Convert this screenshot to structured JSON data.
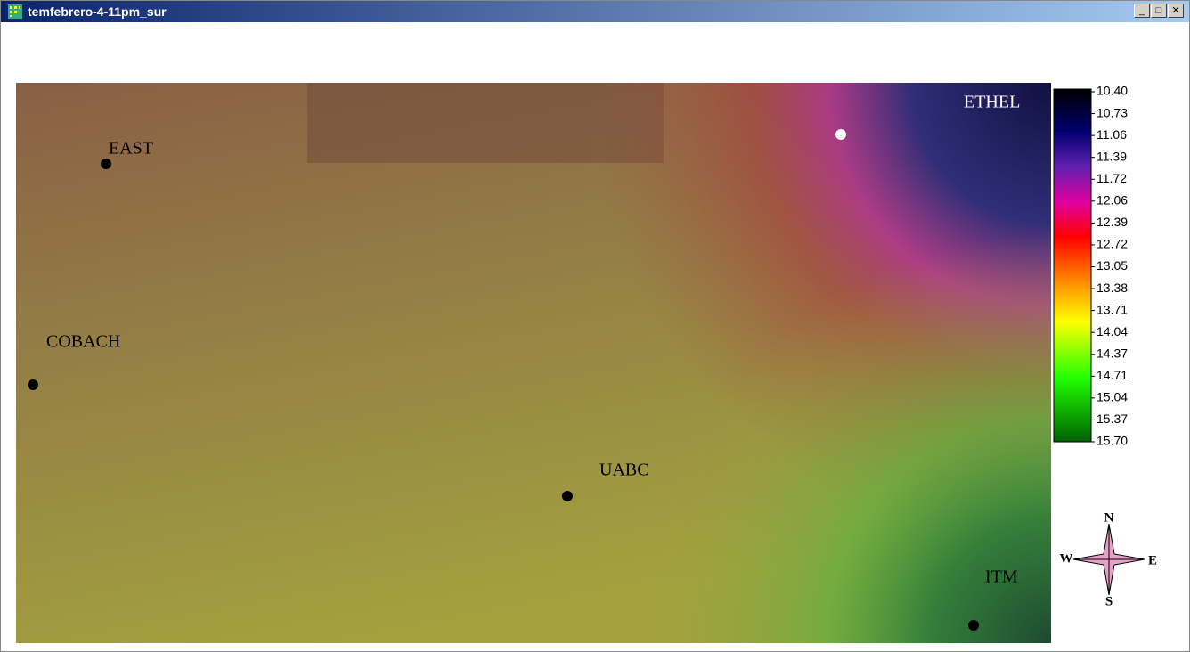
{
  "window": {
    "title": "temfebrero-4-11pm_sur"
  },
  "stations": [
    {
      "name": "EAST"
    },
    {
      "name": "COBACH"
    },
    {
      "name": "UABC"
    },
    {
      "name": "ETHEL"
    },
    {
      "name": "ITM"
    }
  ],
  "legend": {
    "ticks": [
      "10.40",
      "10.73",
      "11.06",
      "11.39",
      "11.72",
      "12.06",
      "12.39",
      "12.72",
      "13.05",
      "13.38",
      "13.71",
      "14.04",
      "14.37",
      "14.71",
      "15.04",
      "15.37",
      "15.70"
    ]
  },
  "compass": {
    "n": "N",
    "s": "S",
    "e": "E",
    "w": "W"
  }
}
